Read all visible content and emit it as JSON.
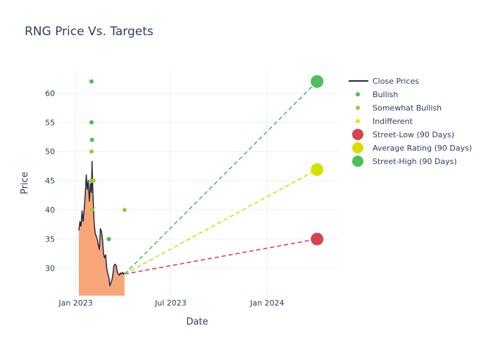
{
  "chart_data": {
    "type": "line",
    "title": "RNG Price Vs. Targets",
    "xlabel": "Date",
    "ylabel": "Price",
    "x_range": [
      "2022-11-25",
      "2024-05-15"
    ],
    "ylim": [
      25.3,
      63.9
    ],
    "x_ticks": [
      {
        "date": "2023-01-01",
        "label": "Jan 2023"
      },
      {
        "date": "2023-07-01",
        "label": "Jul 2023"
      },
      {
        "date": "2024-01-01",
        "label": "Jan 2024"
      }
    ],
    "y_ticks": [
      30,
      35,
      40,
      45,
      50,
      55,
      60
    ],
    "grid": true,
    "legend_position": "right",
    "colors": {
      "close": "#1f2a3c",
      "fill": "#f9a57a",
      "bullish": "#4ebd4e",
      "somewhat_bullish": "#9acd32",
      "indifferent": "#e6e600",
      "low": "#d9434f",
      "avg": "#d6e000",
      "high": "#4cc05a"
    },
    "close_prices": {
      "name": "Close Prices",
      "points": [
        [
          "2023-01-07",
          36.5
        ],
        [
          "2023-01-09",
          38.0
        ],
        [
          "2023-01-11",
          37.2
        ],
        [
          "2023-01-13",
          39.8
        ],
        [
          "2023-01-15",
          38.0
        ],
        [
          "2023-01-17",
          40.0
        ],
        [
          "2023-01-19",
          42.5
        ],
        [
          "2023-01-21",
          46.0
        ],
        [
          "2023-01-23",
          43.5
        ],
        [
          "2023-01-25",
          45.0
        ],
        [
          "2023-01-27",
          41.5
        ],
        [
          "2023-01-29",
          44.5
        ],
        [
          "2023-01-31",
          43.0
        ],
        [
          "2023-02-01",
          48.3
        ],
        [
          "2023-02-02",
          45.0
        ],
        [
          "2023-02-03",
          42.5
        ],
        [
          "2023-02-05",
          38.0
        ],
        [
          "2023-02-07",
          36.0
        ],
        [
          "2023-02-09",
          35.5
        ],
        [
          "2023-02-11",
          35.0
        ],
        [
          "2023-02-13",
          34.0
        ],
        [
          "2023-02-15",
          33.2
        ],
        [
          "2023-02-17",
          36.8
        ],
        [
          "2023-02-19",
          36.3
        ],
        [
          "2023-02-21",
          35.0
        ],
        [
          "2023-02-23",
          32.5
        ],
        [
          "2023-02-25",
          31.8
        ],
        [
          "2023-02-27",
          32.3
        ],
        [
          "2023-03-01",
          30.0
        ],
        [
          "2023-03-03",
          29.0
        ],
        [
          "2023-03-05",
          28.5
        ],
        [
          "2023-03-07",
          27.0
        ],
        [
          "2023-03-09",
          27.5
        ],
        [
          "2023-03-11",
          28.0
        ],
        [
          "2023-03-13",
          29.0
        ],
        [
          "2023-03-15",
          30.5
        ],
        [
          "2023-03-17",
          30.7
        ],
        [
          "2023-03-19",
          30.5
        ],
        [
          "2023-03-21",
          29.5
        ],
        [
          "2023-03-23",
          29.0
        ],
        [
          "2023-03-25",
          28.8
        ],
        [
          "2023-03-27",
          29.2
        ],
        [
          "2023-03-29",
          29.0
        ],
        [
          "2023-03-31",
          29.3
        ],
        [
          "2023-04-02",
          29.0
        ],
        [
          "2023-04-04",
          29.2
        ]
      ]
    },
    "scatter_series": [
      {
        "name": "Bullish",
        "color_key": "bullish",
        "points": [
          [
            "2023-01-31",
            62
          ],
          [
            "2023-01-31",
            55
          ],
          [
            "2023-02-01",
            52
          ],
          [
            "2023-02-02",
            45
          ],
          [
            "2023-03-05",
            35
          ]
        ]
      },
      {
        "name": "Somewhat Bullish",
        "color_key": "somewhat_bullish",
        "points": [
          [
            "2023-01-31",
            50
          ],
          [
            "2023-02-01",
            40
          ],
          [
            "2023-01-30",
            45
          ],
          [
            "2023-02-04",
            45
          ],
          [
            "2023-04-04",
            40
          ]
        ]
      },
      {
        "name": "Indifferent",
        "color_key": "indifferent",
        "points": []
      }
    ],
    "targets": {
      "start": [
        "2023-04-04",
        29.0
      ],
      "end_date": "2024-04-05",
      "items": [
        {
          "name": "Street-Low (90 Days)",
          "color_key": "low",
          "value": 35
        },
        {
          "name": "Average Rating (90 Days)",
          "color_key": "avg",
          "value": 46.9
        },
        {
          "name": "Street-High (90 Days)",
          "color_key": "high",
          "value": 62
        }
      ]
    }
  }
}
